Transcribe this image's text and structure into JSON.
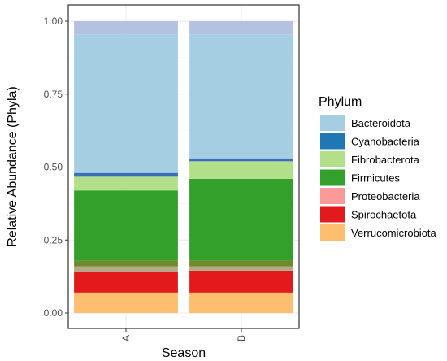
{
  "chart_data": {
    "type": "bar",
    "stacked": true,
    "xlabel": "Season",
    "ylabel": "Relative Abundance (Phyla)",
    "ylim": [
      0,
      1.0
    ],
    "yticks": [
      "0.00",
      "0.25",
      "0.50",
      "0.75",
      "1.00"
    ],
    "categories": [
      "A",
      "B"
    ],
    "grid": true,
    "legend": {
      "title": "Phylum",
      "placement": "right",
      "entries": [
        {
          "name": "Bacteroidota",
          "color": "#a6cee3"
        },
        {
          "name": "Cyanobacteria",
          "color": "#1f78b4"
        },
        {
          "name": "Fibrobacterota",
          "color": "#b2df8a"
        },
        {
          "name": "Firmicutes",
          "color": "#33a02c"
        },
        {
          "name": "Proteobacteria",
          "color": "#fb9a99"
        },
        {
          "name": "Spirochaetota",
          "color": "#e31a1c"
        },
        {
          "name": "Verrucomicrobiota",
          "color": "#fdbf6f"
        }
      ]
    },
    "stacks": [
      {
        "category": "A",
        "segments": [
          {
            "color": "#fdbf6f",
            "from": 0.0,
            "to": 0.07
          },
          {
            "color": "#e31a1c",
            "from": 0.07,
            "to": 0.14
          },
          {
            "color": "#b5a98a",
            "from": 0.14,
            "to": 0.16
          },
          {
            "color": "#6f8a2a",
            "from": 0.16,
            "to": 0.18
          },
          {
            "color": "#33a02c",
            "from": 0.18,
            "to": 0.42
          },
          {
            "color": "#b2df8a",
            "from": 0.42,
            "to": 0.467
          },
          {
            "color": "#3a6fb8",
            "from": 0.467,
            "to": 0.48
          },
          {
            "color": "#a6cee3",
            "from": 0.48,
            "to": 0.955
          },
          {
            "color": "#b5c1e0",
            "from": 0.955,
            "to": 1.0
          }
        ]
      },
      {
        "category": "B",
        "segments": [
          {
            "color": "#fdbf6f",
            "from": 0.0,
            "to": 0.07
          },
          {
            "color": "#e31a1c",
            "from": 0.07,
            "to": 0.145
          },
          {
            "color": "#b5a98a",
            "from": 0.145,
            "to": 0.16
          },
          {
            "color": "#6f8a2a",
            "from": 0.16,
            "to": 0.18
          },
          {
            "color": "#33a02c",
            "from": 0.18,
            "to": 0.46
          },
          {
            "color": "#b2df8a",
            "from": 0.46,
            "to": 0.52
          },
          {
            "color": "#3a6fb8",
            "from": 0.52,
            "to": 0.53
          },
          {
            "color": "#a6cee3",
            "from": 0.53,
            "to": 0.955
          },
          {
            "color": "#b5c1e0",
            "from": 0.955,
            "to": 1.0
          }
        ]
      }
    ]
  }
}
